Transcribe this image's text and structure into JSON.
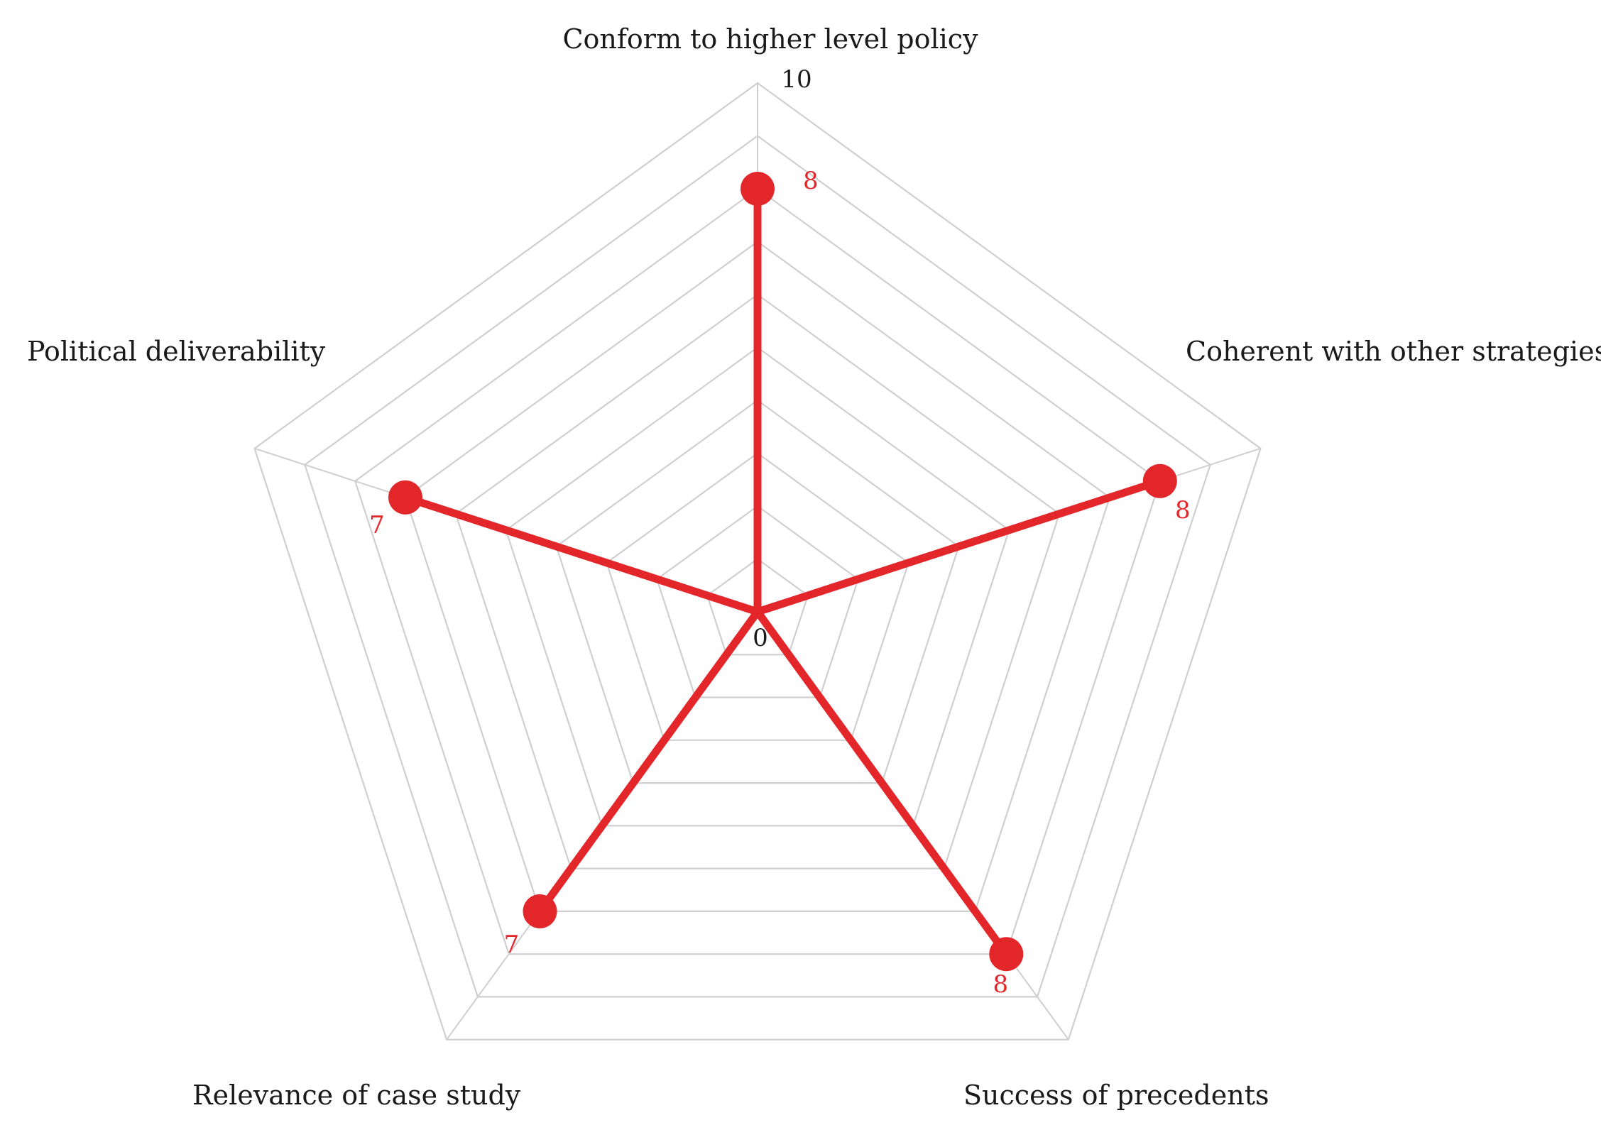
{
  "chart_data": {
    "type": "radar",
    "axes": [
      "Conform to higher level policy",
      "Coherent with other strategies",
      "Success of precedents",
      "Relevance of case study",
      "Political deliverability"
    ],
    "series": [
      {
        "values": [
          8,
          8,
          8,
          7,
          7
        ],
        "color": "#e3262a"
      }
    ],
    "range": [
      0,
      10
    ],
    "ring_count": 10,
    "tick_labels": [
      "0",
      "10"
    ],
    "grid": true,
    "legend": "none",
    "grid_color": "#cfcfcf",
    "text_color": "#1a1a1a"
  }
}
